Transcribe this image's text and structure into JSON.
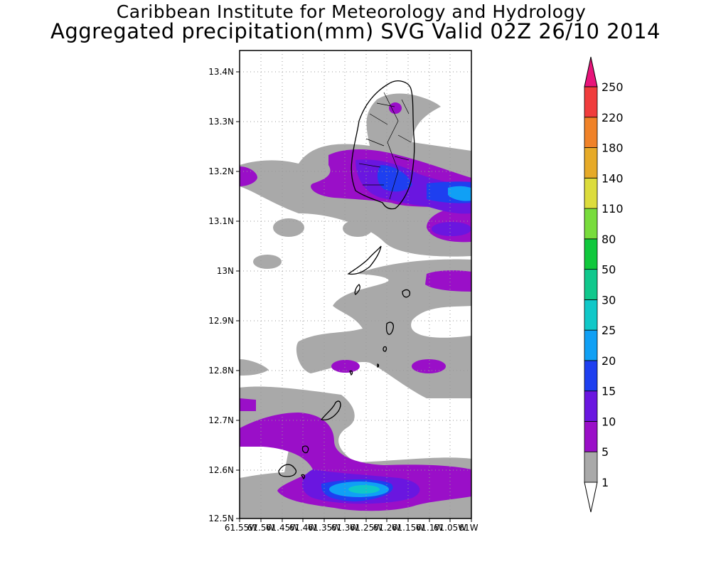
{
  "header": {
    "institute": "Caribbean Institute for Meteorology and Hydrology",
    "product": "Aggregated precipitation(mm) SVG Valid 02Z 26/10 2014"
  },
  "map": {
    "y_ticks": [
      "13.4N",
      "13.3N",
      "13.2N",
      "13.1N",
      "13N",
      "12.9N",
      "12.8N",
      "12.7N",
      "12.6N",
      "12.5N"
    ],
    "x_ticks": [
      "61.55W",
      "61.5W",
      "61.45W",
      "61.4W",
      "61.35W",
      "61.3W",
      "61.25W",
      "61.2W",
      "61.15W",
      "61.1W",
      "61.05W",
      "61W"
    ],
    "lat_range": [
      12.5,
      13.44
    ],
    "lon_range": [
      -61.55,
      -61.0
    ]
  },
  "colorbar": {
    "levels": [
      "1",
      "5",
      "10",
      "15",
      "20",
      "25",
      "30",
      "50",
      "80",
      "110",
      "140",
      "180",
      "220",
      "250"
    ],
    "colors": [
      "#ffffff",
      "#a9a9a9",
      "#9a0fc8",
      "#6a16e0",
      "#1e3ff0",
      "#10a0f5",
      "#10c8c8",
      "#10c88c",
      "#10c83c",
      "#78dc3c",
      "#dcdc3c",
      "#e6aa28",
      "#f08228",
      "#f03c3c",
      "#e8147a"
    ]
  },
  "chart_data": {
    "type": "heatmap",
    "title": "Aggregated precipitation(mm) SVG Valid 02Z 26/10 2014",
    "xlabel": "",
    "ylabel": "",
    "xlim": [
      -61.55,
      -61.0
    ],
    "ylim": [
      12.5,
      13.44
    ],
    "contour_levels_mm": [
      1,
      5,
      10,
      15,
      20,
      25,
      30,
      50,
      80,
      110,
      140,
      180,
      220,
      250
    ],
    "max_observed_mm": 25
  }
}
